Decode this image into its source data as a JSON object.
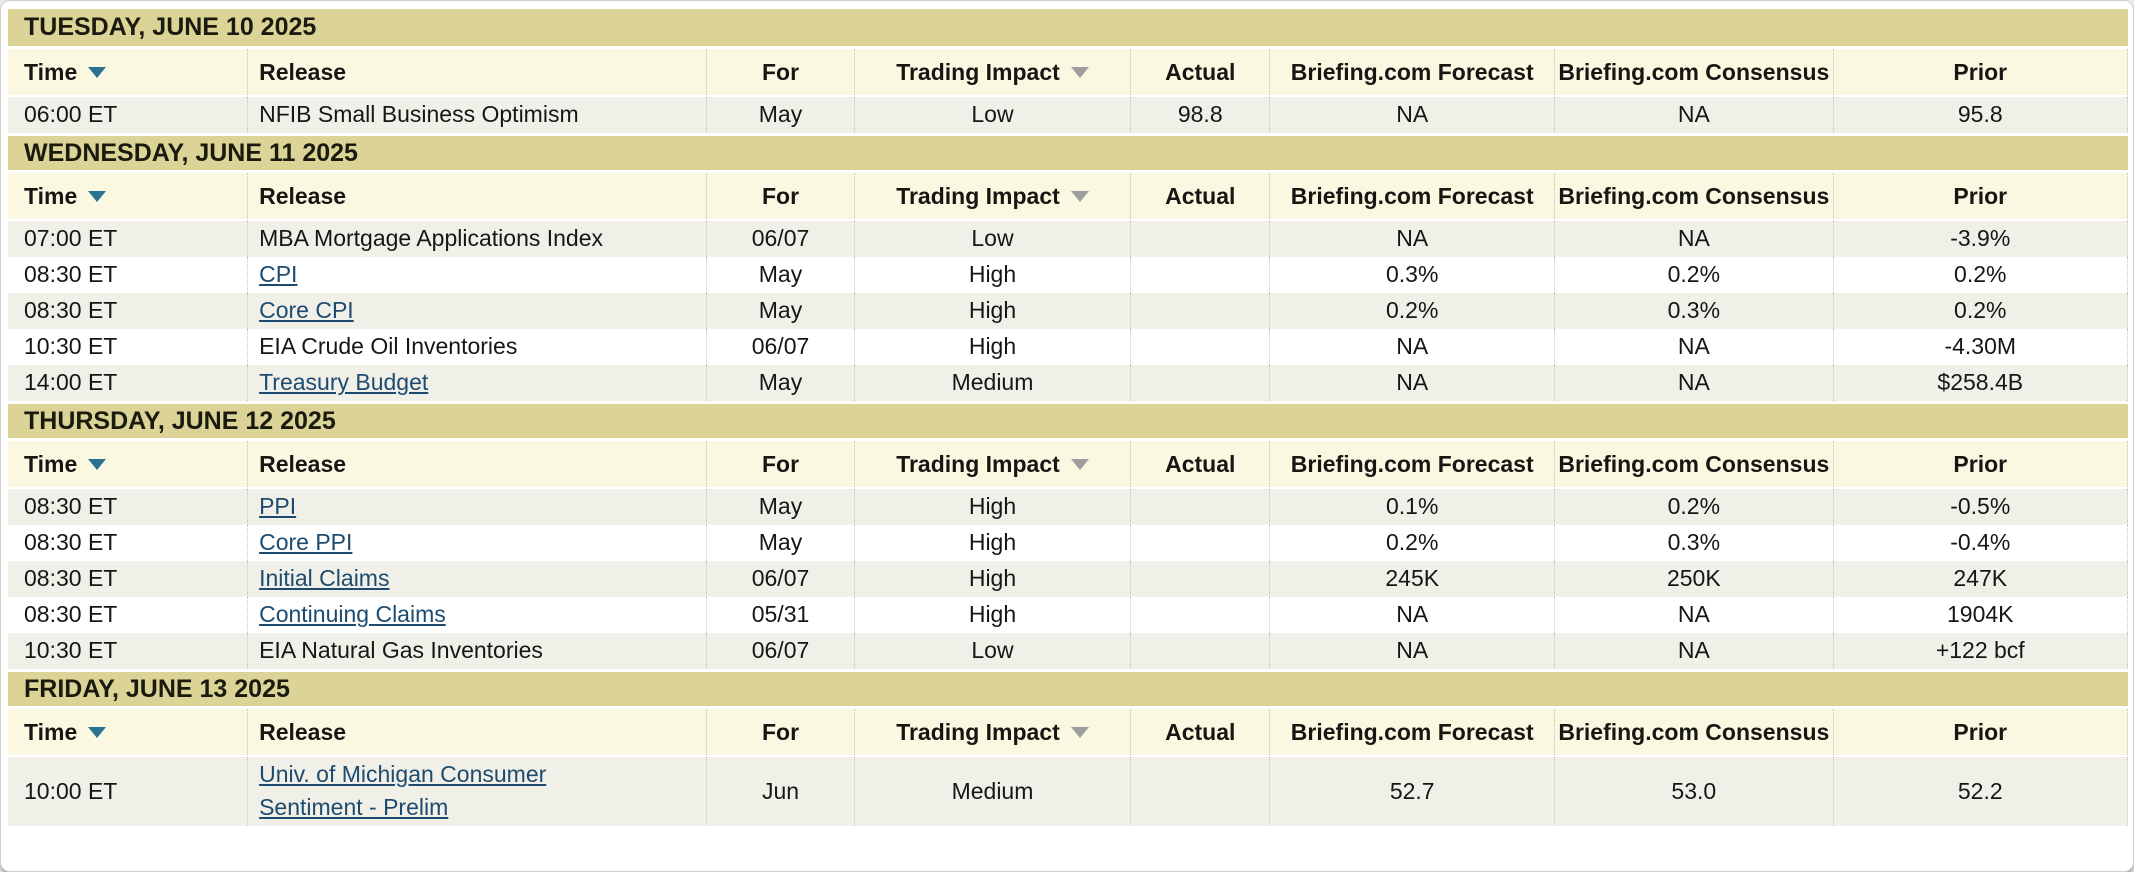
{
  "colors": {
    "date_band_bg": "#dcd497",
    "header_row_bg": "#fbf8e2",
    "row_alt_bg": "#f0f0e9",
    "row_bg": "#ffffff",
    "link": "#1d4b6f",
    "text": "#161613",
    "divider": "#c3c3b9",
    "sort_arrow_time": "#2a7292",
    "sort_arrow_trading_impact": "#9c9c9c"
  },
  "table": {
    "columns": [
      {
        "id": "time",
        "label": "Time",
        "width_pct": 11.25,
        "align": "left",
        "sort_arrow": "#2a7292"
      },
      {
        "id": "release",
        "label": "Release",
        "width_pct": 21.6,
        "align": "left",
        "sort_arrow": null
      },
      {
        "id": "for",
        "label": "For",
        "width_pct": 6.95,
        "align": "center",
        "sort_arrow": null
      },
      {
        "id": "impact",
        "label": "Trading Impact",
        "width_pct": 13.0,
        "align": "center",
        "sort_arrow": "#9c9c9c"
      },
      {
        "id": "actual",
        "label": "Actual",
        "width_pct": 6.55,
        "align": "center",
        "sort_arrow": null
      },
      {
        "id": "forecast",
        "label": "Briefing.com Forecast",
        "width_pct": 13.4,
        "align": "center",
        "sort_arrow": null
      },
      {
        "id": "consensus",
        "label": "Briefing.com Consensus",
        "width_pct": 13.1,
        "align": "center",
        "sort_arrow": null
      },
      {
        "id": "prior",
        "label": "Prior",
        "width_pct": 13.9,
        "align": "center",
        "sort_arrow": null
      }
    ],
    "sections": [
      {
        "date": "TUESDAY, JUNE 10 2025",
        "rows": [
          {
            "time": "06:00 ET",
            "release": "NFIB Small Business Optimism",
            "link": false,
            "for": "May",
            "impact": "Low",
            "actual": "98.8",
            "forecast": "NA",
            "consensus": "NA",
            "prior": "95.8"
          }
        ]
      },
      {
        "date": "WEDNESDAY, JUNE 11 2025",
        "rows": [
          {
            "time": "07:00 ET",
            "release": "MBA Mortgage Applications Index",
            "link": false,
            "for": "06/07",
            "impact": "Low",
            "actual": "",
            "forecast": "NA",
            "consensus": "NA",
            "prior": "-3.9%"
          },
          {
            "time": "08:30 ET",
            "release": "CPI",
            "link": true,
            "for": "May",
            "impact": "High",
            "actual": "",
            "forecast": "0.3%",
            "consensus": "0.2%",
            "prior": "0.2%"
          },
          {
            "time": "08:30 ET",
            "release": "Core CPI",
            "link": true,
            "for": "May",
            "impact": "High",
            "actual": "",
            "forecast": "0.2%",
            "consensus": "0.3%",
            "prior": "0.2%"
          },
          {
            "time": "10:30 ET",
            "release": "EIA Crude Oil Inventories",
            "link": false,
            "for": "06/07",
            "impact": "High",
            "actual": "",
            "forecast": "NA",
            "consensus": "NA",
            "prior": "-4.30M"
          },
          {
            "time": "14:00 ET",
            "release": "Treasury Budget",
            "link": true,
            "for": "May",
            "impact": "Medium",
            "actual": "",
            "forecast": "NA",
            "consensus": "NA",
            "prior": "$258.4B"
          }
        ]
      },
      {
        "date": "THURSDAY, JUNE 12 2025",
        "rows": [
          {
            "time": "08:30 ET",
            "release": "PPI",
            "link": true,
            "for": "May",
            "impact": "High",
            "actual": "",
            "forecast": "0.1%",
            "consensus": "0.2%",
            "prior": "-0.5%"
          },
          {
            "time": "08:30 ET",
            "release": "Core PPI",
            "link": true,
            "for": "May",
            "impact": "High",
            "actual": "",
            "forecast": "0.2%",
            "consensus": "0.3%",
            "prior": "-0.4%"
          },
          {
            "time": "08:30 ET",
            "release": "Initial Claims",
            "link": true,
            "for": "06/07",
            "impact": "High",
            "actual": "",
            "forecast": "245K",
            "consensus": "250K",
            "prior": "247K"
          },
          {
            "time": "08:30 ET",
            "release": "Continuing Claims",
            "link": true,
            "for": "05/31",
            "impact": "High",
            "actual": "",
            "forecast": "NA",
            "consensus": "NA",
            "prior": "1904K"
          },
          {
            "time": "10:30 ET",
            "release": "EIA Natural Gas Inventories",
            "link": false,
            "for": "06/07",
            "impact": "Low",
            "actual": "",
            "forecast": "NA",
            "consensus": "NA",
            "prior": "+122 bcf"
          }
        ]
      },
      {
        "date": "FRIDAY, JUNE 13 2025",
        "rows": [
          {
            "time": "10:00 ET",
            "release": "Univ. of Michigan Consumer Sentiment - Prelim",
            "link": true,
            "for": "Jun",
            "impact": "Medium",
            "actual": "",
            "forecast": "52.7",
            "consensus": "53.0",
            "prior": "52.2"
          }
        ]
      }
    ]
  }
}
